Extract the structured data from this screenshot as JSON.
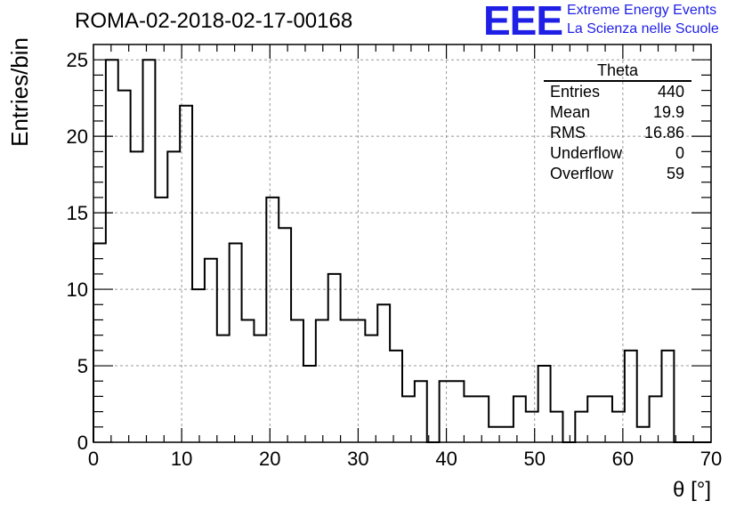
{
  "header": {
    "title": "ROMA-02-2018-02-17-00168"
  },
  "logo": {
    "mark": "EEE",
    "line1": "Extreme Energy Events",
    "line2": "La Scienza nelle Scuole",
    "color": "#1f1fe6"
  },
  "stats": {
    "title": "Theta",
    "rows": [
      {
        "label": "Entries",
        "value": "440"
      },
      {
        "label": "Mean",
        "value": "19.9"
      },
      {
        "label": "RMS",
        "value": "16.86"
      },
      {
        "label": "Underflow",
        "value": "0"
      },
      {
        "label": "Overflow",
        "value": "59"
      }
    ]
  },
  "chart_data": {
    "type": "histogram",
    "xlabel": "θ [°]",
    "ylabel": "Entries/bin",
    "xlim": [
      0,
      70
    ],
    "ylim": [
      0,
      26
    ],
    "bin_width": 1.4,
    "x_ticks": [
      0,
      10,
      20,
      30,
      40,
      50,
      60,
      70
    ],
    "y_ticks": [
      0,
      5,
      10,
      15,
      20,
      25
    ],
    "grid": true,
    "line_color": "#000000",
    "values": [
      13,
      25,
      23,
      19,
      25,
      16,
      19,
      22,
      10,
      12,
      7,
      13,
      8,
      7,
      16,
      14,
      8,
      5,
      8,
      11,
      8,
      8,
      7,
      9,
      6,
      3,
      4,
      0,
      4,
      4,
      3,
      3,
      1,
      1,
      3,
      2,
      5,
      2,
      0,
      2,
      3,
      3,
      2,
      6,
      1,
      3,
      6,
      0,
      0,
      0
    ]
  }
}
